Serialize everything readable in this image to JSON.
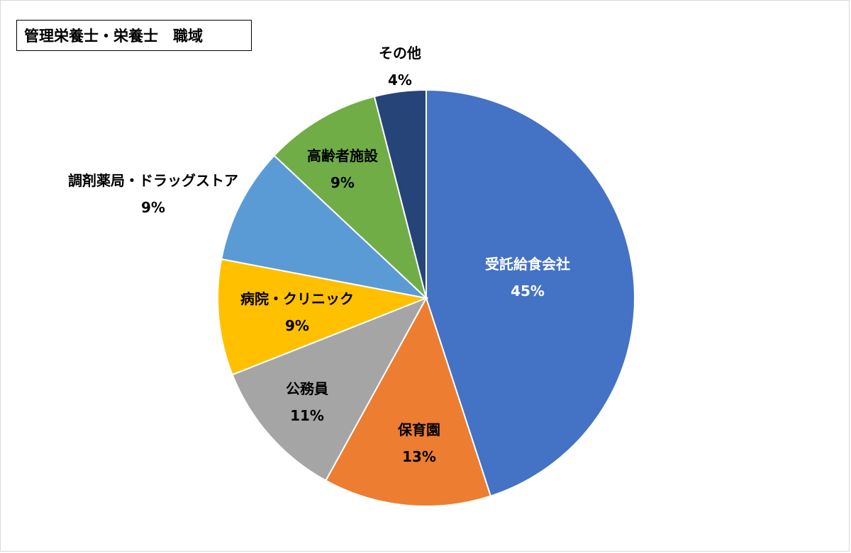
{
  "chart_data": {
    "type": "pie",
    "title": "管理栄養士・栄養士　職域",
    "start_angle_deg": 0,
    "direction": "clockwise",
    "legend": "none",
    "slices": [
      {
        "label": "受託給食会社",
        "value": 45,
        "value_label": "45%",
        "color": "#4472C4",
        "label_color": "#ffffff"
      },
      {
        "label": "保育園",
        "value": 13,
        "value_label": "13%",
        "color": "#ED7D31",
        "label_color": "#000000"
      },
      {
        "label": "公務員",
        "value": 11,
        "value_label": "11%",
        "color": "#A5A5A5",
        "label_color": "#000000"
      },
      {
        "label": "病院・クリニック",
        "value": 9,
        "value_label": "9%",
        "color": "#FFC000",
        "label_color": "#000000"
      },
      {
        "label": "調剤薬局・ドラッグストア",
        "value": 9,
        "value_label": "9%",
        "color": "#5B9BD5",
        "label_color": "#000000"
      },
      {
        "label": "高齢者施設",
        "value": 9,
        "value_label": "9%",
        "color": "#70AD47",
        "label_color": "#000000"
      },
      {
        "label": "その他",
        "value": 4,
        "value_label": "4%",
        "color": "#264478",
        "label_color": "#000000"
      }
    ]
  }
}
